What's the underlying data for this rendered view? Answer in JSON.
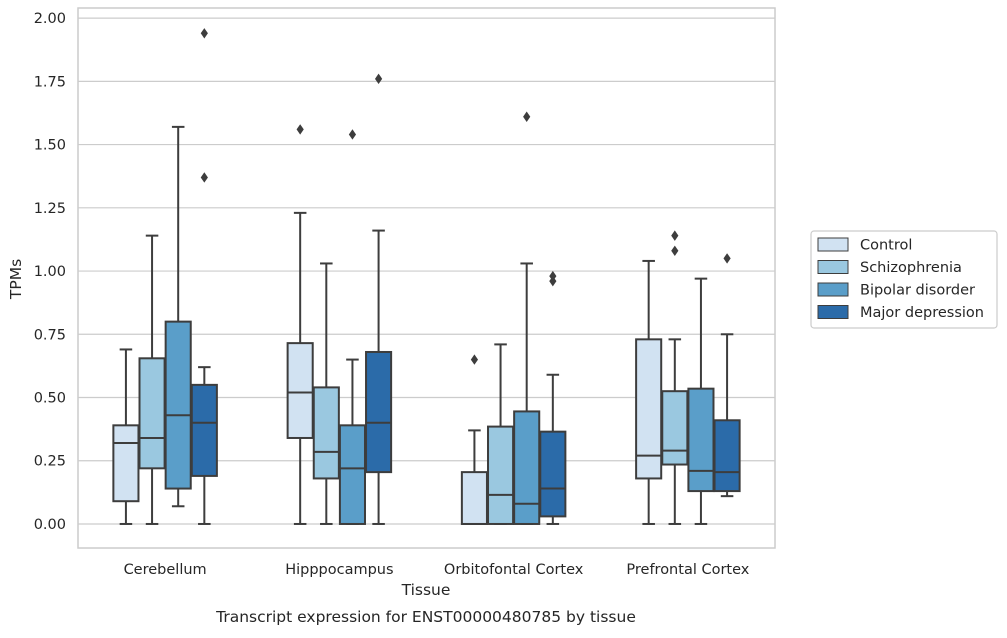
{
  "caption": "Transcript expression for ENST00000480785 by tissue",
  "chart_data": {
    "type": "box",
    "title": "",
    "xlabel": "Tissue",
    "ylabel": "TPMs",
    "ylim": [
      -0.095,
      2.04
    ],
    "yticks": [
      0.0,
      0.25,
      0.5,
      0.75,
      1.0,
      1.25,
      1.5,
      1.75,
      2.0
    ],
    "ytick_labels": [
      "0.00",
      "0.25",
      "0.50",
      "0.75",
      "1.00",
      "1.25",
      "1.50",
      "1.75",
      "2.00"
    ],
    "grid": "horizontal",
    "legend_position": "right",
    "categories": [
      "Cerebellum",
      "Hipppocampus",
      "Orbitofontal Cortex",
      "Prefrontal Cortex"
    ],
    "series": [
      {
        "name": "Control",
        "color": "#d1e2f2",
        "boxes": [
          {
            "whisker_low": 0.0,
            "q1": 0.09,
            "median": 0.32,
            "q3": 0.39,
            "whisker_high": 0.69,
            "outliers": []
          },
          {
            "whisker_low": 0.0,
            "q1": 0.34,
            "median": 0.52,
            "q3": 0.715,
            "whisker_high": 1.23,
            "outliers": [
              1.56
            ]
          },
          {
            "whisker_low": 0.0,
            "q1": 0.0,
            "median": 0.0,
            "q3": 0.205,
            "whisker_high": 0.37,
            "outliers": [
              0.65
            ]
          },
          {
            "whisker_low": 0.0,
            "q1": 0.18,
            "median": 0.27,
            "q3": 0.73,
            "whisker_high": 1.04,
            "outliers": []
          }
        ]
      },
      {
        "name": "Schizophrenia",
        "color": "#9ac8e0",
        "boxes": [
          {
            "whisker_low": 0.0,
            "q1": 0.22,
            "median": 0.34,
            "q3": 0.655,
            "whisker_high": 1.14,
            "outliers": []
          },
          {
            "whisker_low": 0.0,
            "q1": 0.18,
            "median": 0.285,
            "q3": 0.54,
            "whisker_high": 1.03,
            "outliers": []
          },
          {
            "whisker_low": 0.0,
            "q1": 0.0,
            "median": 0.115,
            "q3": 0.385,
            "whisker_high": 0.71,
            "outliers": []
          },
          {
            "whisker_low": 0.0,
            "q1": 0.235,
            "median": 0.29,
            "q3": 0.525,
            "whisker_high": 0.73,
            "outliers": [
              1.08,
              1.14
            ]
          }
        ]
      },
      {
        "name": "Bipolar disorder",
        "color": "#5a9ec9",
        "boxes": [
          {
            "whisker_low": 0.07,
            "q1": 0.14,
            "median": 0.43,
            "q3": 0.8,
            "whisker_high": 1.57,
            "outliers": []
          },
          {
            "whisker_low": 0.0,
            "q1": 0.0,
            "median": 0.22,
            "q3": 0.39,
            "whisker_high": 0.65,
            "outliers": [
              1.54
            ]
          },
          {
            "whisker_low": 0.0,
            "q1": 0.0,
            "median": 0.08,
            "q3": 0.445,
            "whisker_high": 1.03,
            "outliers": [
              1.61
            ]
          },
          {
            "whisker_low": 0.0,
            "q1": 0.13,
            "median": 0.21,
            "q3": 0.535,
            "whisker_high": 0.97,
            "outliers": []
          }
        ]
      },
      {
        "name": "Major depression",
        "color": "#2b6ba9",
        "boxes": [
          {
            "whisker_low": 0.0,
            "q1": 0.19,
            "median": 0.4,
            "q3": 0.55,
            "whisker_high": 0.62,
            "outliers": [
              1.37,
              1.94
            ]
          },
          {
            "whisker_low": 0.0,
            "q1": 0.205,
            "median": 0.4,
            "q3": 0.68,
            "whisker_high": 1.16,
            "outliers": [
              1.76
            ]
          },
          {
            "whisker_low": 0.0,
            "q1": 0.03,
            "median": 0.14,
            "q3": 0.365,
            "whisker_high": 0.59,
            "outliers": [
              0.96,
              0.98
            ]
          },
          {
            "whisker_low": 0.11,
            "q1": 0.13,
            "median": 0.205,
            "q3": 0.41,
            "whisker_high": 0.75,
            "outliers": [
              1.05
            ]
          }
        ]
      }
    ]
  }
}
